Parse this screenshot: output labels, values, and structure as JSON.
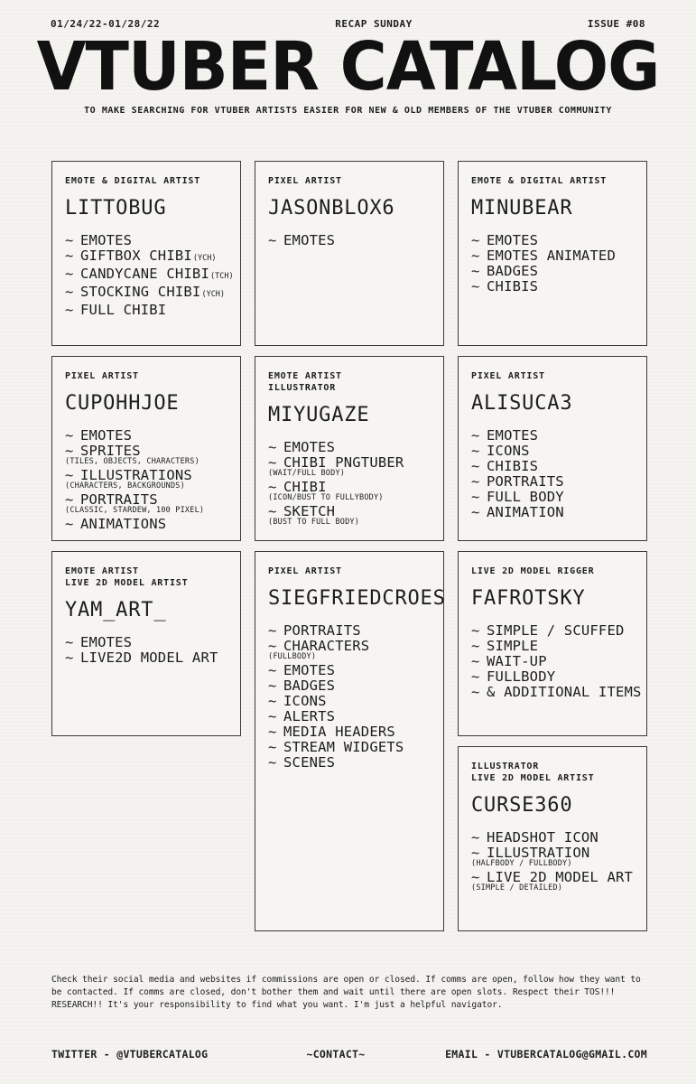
{
  "colors": {
    "paper": "#f4f3f0",
    "ink": "#1d1d1d",
    "card_bg": "#f6f5f2",
    "border": "#3a3a3a"
  },
  "header": {
    "date_range": "01/24/22-01/28/22",
    "edition": "RECAP SUNDAY",
    "issue": "ISSUE #08",
    "title": "VTUBER CATALOG",
    "subtitle": "TO MAKE SEARCHING FOR VTUBER ARTISTS EASIER FOR NEW & OLD MEMBERS OF THE VTUBER COMMUNITY"
  },
  "cards": [
    {
      "id": "littobug",
      "roles": [
        "EMOTE & DIGITAL ARTIST"
      ],
      "name": "LITTOBUG",
      "items": [
        {
          "label": "EMOTES"
        },
        {
          "label": "GIFTBOX CHIBI",
          "tag": "(YCH)"
        },
        {
          "label": "CANDYCANE CHIBI",
          "tag": "(TCH)"
        },
        {
          "label": "STOCKING CHIBI",
          "tag": "(YCH)"
        },
        {
          "label": "FULL CHIBI"
        }
      ]
    },
    {
      "id": "jasonblox6",
      "roles": [
        "PIXEL ARTIST"
      ],
      "name": "JASONBLOX6",
      "items": [
        {
          "label": "EMOTES"
        }
      ]
    },
    {
      "id": "minubear",
      "roles": [
        "EMOTE & DIGITAL ARTIST"
      ],
      "name": "MINUBEAR",
      "items": [
        {
          "label": "EMOTES"
        },
        {
          "label": "EMOTES ANIMATED"
        },
        {
          "label": "BADGES"
        },
        {
          "label": "CHIBIS"
        }
      ]
    },
    {
      "id": "cupohhjoe",
      "roles": [
        "PIXEL ARTIST"
      ],
      "name": "CUPOHHJOE",
      "items": [
        {
          "label": "EMOTES"
        },
        {
          "label": "SPRITES",
          "note": "(TILES, OBJECTS, CHARACTERS)"
        },
        {
          "label": "ILLUSTRATIONS",
          "note": "(CHARACTERS, BACKGROUNDS)"
        },
        {
          "label": "PORTRAITS",
          "note": "(CLASSIC, STARDEW, 100 PIXEL)"
        },
        {
          "label": "ANIMATIONS"
        }
      ]
    },
    {
      "id": "miyugaze",
      "roles": [
        "EMOTE ARTIST",
        "ILLUSTRATOR"
      ],
      "name": "MIYUGAZE",
      "items": [
        {
          "label": "EMOTES"
        },
        {
          "label": "CHIBI PNGTUBER",
          "note": "(WAIT/FULL BODY)"
        },
        {
          "label": "CHIBI",
          "note": "(ICON/BUST TO FULLYBODY)"
        },
        {
          "label": "SKETCH",
          "note": "(BUST TO FULL BODY)"
        }
      ]
    },
    {
      "id": "alisuca3",
      "roles": [
        "PIXEL ARTIST"
      ],
      "name": "ALISUCA3",
      "items": [
        {
          "label": "EMOTES"
        },
        {
          "label": "ICONS"
        },
        {
          "label": "CHIBIS"
        },
        {
          "label": "PORTRAITS"
        },
        {
          "label": "FULL BODY"
        },
        {
          "label": "ANIMATION"
        }
      ]
    },
    {
      "id": "yam-art",
      "roles": [
        "EMOTE ARTIST",
        "LIVE 2D MODEL ARTIST"
      ],
      "name": "YAM_ART_",
      "items": [
        {
          "label": "EMOTES"
        },
        {
          "label": "LIVE2D MODEL ART"
        }
      ]
    },
    {
      "id": "siegfriedcroes",
      "roles": [
        "PIXEL ARTIST"
      ],
      "name": "SIEGFRIEDCROES",
      "items": [
        {
          "label": "PORTRAITS"
        },
        {
          "label": "CHARACTERS",
          "note": "(FULLBODY)"
        },
        {
          "label": "EMOTES"
        },
        {
          "label": "BADGES"
        },
        {
          "label": "ICONS"
        },
        {
          "label": "ALERTS"
        },
        {
          "label": "MEDIA HEADERS"
        },
        {
          "label": "STREAM WIDGETS"
        },
        {
          "label": "SCENES"
        }
      ]
    },
    {
      "id": "fafrotsky",
      "roles": [
        "LIVE 2D MODEL RIGGER"
      ],
      "name": "FAFROTSKY",
      "items": [
        {
          "label": "SIMPLE / SCUFFED"
        },
        {
          "label": "SIMPLE"
        },
        {
          "label": "WAIT-UP"
        },
        {
          "label": "FULLBODY"
        },
        {
          "label": "& ADDITIONAL ITEMS"
        }
      ]
    },
    {
      "id": "curse360",
      "roles": [
        "ILLUSTRATOR",
        "LIVE 2D MODEL ARTIST"
      ],
      "name": "CURSE360",
      "items": [
        {
          "label": "HEADSHOT ICON"
        },
        {
          "label": "ILLUSTRATION",
          "note": "(HALFBODY / FULLBODY)"
        },
        {
          "label": "LIVE 2D MODEL ART",
          "note": "(SIMPLE / DETAILED)"
        }
      ]
    }
  ],
  "disclaimer": "Check their social media and websites if commissions are open or closed. If comms are open, follow how they want to be contacted. If comms are closed, don't bother them and wait until there are open slots. Respect their TOS!!! RESEARCH!! It's your responsibility to find what you want. I'm just a helpful navigator.",
  "footer": {
    "twitter": "TWITTER - @VTUBERCATALOG",
    "contact": "~CONTACT~",
    "email": "EMAIL - VTUBERCATALOG@GMAIL.COM"
  }
}
